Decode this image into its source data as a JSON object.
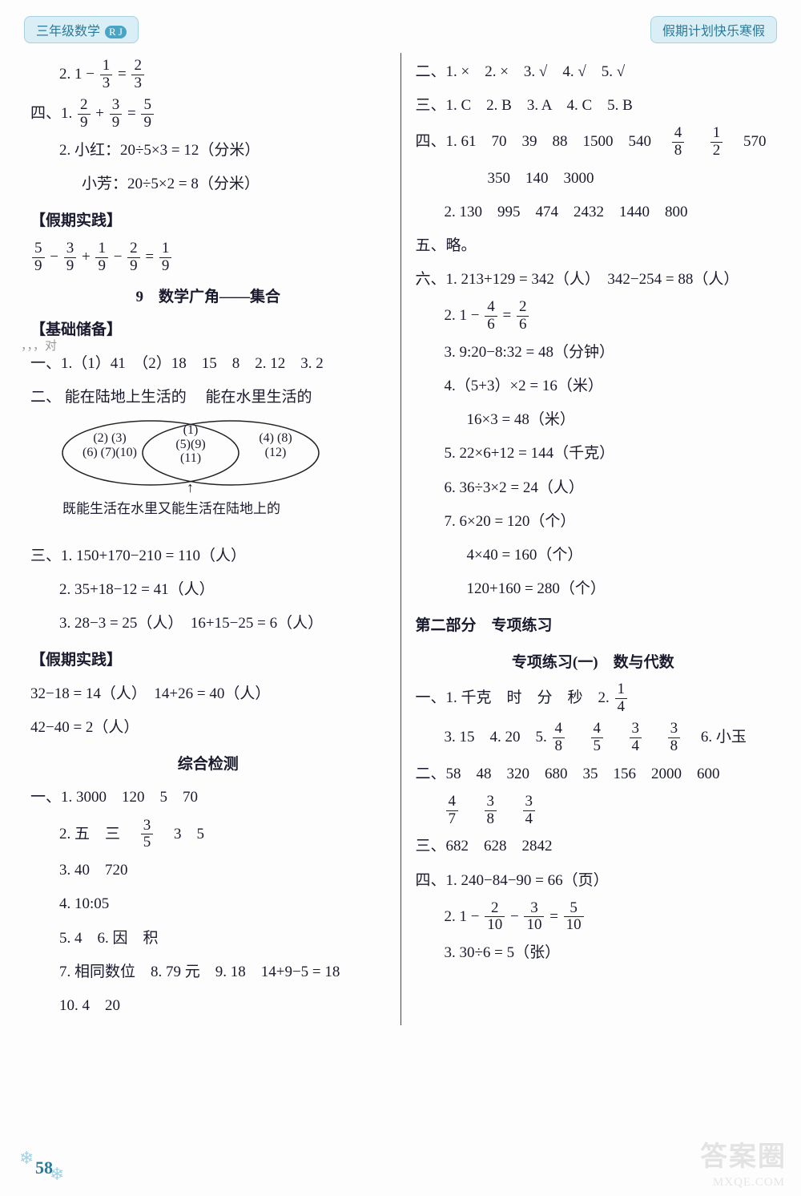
{
  "header": {
    "left_label": "三年级数学",
    "left_badge": "R J",
    "right_label": "假期计划快乐寒假"
  },
  "left_col": {
    "l1_prefix": "2.",
    "l1_lhs": "1 −",
    "l1_f1_num": "1",
    "l1_f1_den": "3",
    "l1_eq": "=",
    "l1_f2_num": "2",
    "l1_f2_den": "3",
    "l2_prefix": "四、1.",
    "l2_f1_num": "2",
    "l2_f1_den": "9",
    "l2_plus": "+",
    "l2_f2_num": "3",
    "l2_f2_den": "9",
    "l2_eq": "=",
    "l2_f3_num": "5",
    "l2_f3_den": "9",
    "l3": "2. 小红：20÷5×3 = 12（分米）",
    "l4": "小芳：20÷5×2 = 8（分米）",
    "sec1": "【假期实践】",
    "l5_f1_num": "5",
    "l5_f1_den": "9",
    "l5_m1": "−",
    "l5_f2_num": "3",
    "l5_f2_den": "9",
    "l5_m2": "+",
    "l5_f3_num": "1",
    "l5_f3_den": "9",
    "l5_m3": "−",
    "l5_f4_num": "2",
    "l5_f4_den": "9",
    "l5_eq": "=",
    "l5_f5_num": "1",
    "l5_f5_den": "9",
    "title9": "9　数学广角——集合",
    "faint_note": "，，，对",
    "sec2": "【基础储备】",
    "l6": "一、1.（1）41　（2）18　15　8　2. 12　3. 2",
    "venn_left_label": "能在陆地上生活的",
    "venn_right_label": "能在水里生活的",
    "venn_left_items": "(2) (3)\n(6) (7)(10)",
    "venn_mid_items": "(1)\n(5)(9)\n(11)",
    "venn_right_items": "(4) (8)\n(12)",
    "venn_caption": "既能生活在水里又能生活在陆地上的",
    "l_two_prefix": "二、",
    "l7": "三、1. 150+170−210 = 110（人）",
    "l8": "2. 35+18−12 = 41（人）",
    "l9": "3. 28−3 = 25（人）　16+15−25 = 6（人）",
    "sec3": "【假期实践】",
    "l10": "32−18 = 14（人）　14+26 = 40（人）",
    "l11": "42−40 = 2（人）",
    "title_comp": "综合检测",
    "l12": "一、1. 3000　120　5　70",
    "l13a": "2. 五　三　",
    "l13_f_num": "3",
    "l13_f_den": "5",
    "l13b": "　3　5",
    "l14": "3. 40　720",
    "l15": "4. 10:05",
    "l16": "5. 4　6. 因　积",
    "l17": "7. 相同数位　8. 79 元　9. 18　14+9−5 = 18",
    "l18": "10. 4　20"
  },
  "right_col": {
    "r1": "二、1. ×　2. ×　3. √　4. √　5. √",
    "r2": "三、1. C　2. B　3. A　4. C　5. B",
    "r3a": "四、1. 61　70　39　88　1500　540　",
    "r3_f1_num": "4",
    "r3_f1_den": "8",
    "r3_mid": "　",
    "r3_f2_num": "1",
    "r3_f2_den": "2",
    "r3b": "　570",
    "r4": "350　140　3000",
    "r5": "2. 130　995　474　2432　1440　800",
    "r6": "五、略。",
    "r7": "六、1. 213+129 = 342（人）　342−254 = 88（人）",
    "r8a": "2. 1 −",
    "r8_f1_num": "4",
    "r8_f1_den": "6",
    "r8_eq": "=",
    "r8_f2_num": "2",
    "r8_f2_den": "6",
    "r9": "3. 9:20−8:32 = 48（分钟）",
    "r10": "4.（5+3）×2 = 16（米）",
    "r11": "16×3 = 48（米）",
    "r12": "5. 22×6+12 = 144（千克）",
    "r13": "6. 36÷3×2 = 24（人）",
    "r14": "7. 6×20 = 120（个）",
    "r15": "4×40 = 160（个）",
    "r16": "120+160 = 280（个）",
    "sec4": "第二部分　专项练习",
    "sec4_sub": "专项练习(一)　数与代数",
    "r17a": "一、1. 千克　时　分　秒　2.",
    "r17_f_num": "1",
    "r17_f_den": "4",
    "r18a": "3. 15　4. 20　5.",
    "r18_f1_num": "4",
    "r18_f1_den": "8",
    "r18_s1": "　",
    "r18_f2_num": "4",
    "r18_f2_den": "5",
    "r18_s2": "　",
    "r18_f3_num": "3",
    "r18_f3_den": "4",
    "r18_s3": "　",
    "r18_f4_num": "3",
    "r18_f4_den": "8",
    "r18b": "　6. 小玉",
    "r19": "二、58　48　320　680　35　156　2000　600",
    "r20_f1_num": "4",
    "r20_f1_den": "7",
    "r20_s1": "　",
    "r20_f2_num": "3",
    "r20_f2_den": "8",
    "r20_s2": "　",
    "r20_f3_num": "3",
    "r20_f3_den": "4",
    "r21": "三、682　628　2842",
    "r22": "四、1. 240−84−90 = 66（页）",
    "r23a": "2. 1 −",
    "r23_f1_num": "2",
    "r23_f1_den": "10",
    "r23_m": "−",
    "r23_f2_num": "3",
    "r23_f2_den": "10",
    "r23_eq": "=",
    "r23_f3_num": "5",
    "r23_f3_den": "10",
    "r24": "3. 30÷6 = 5（张）"
  },
  "footer": {
    "page_num": "58",
    "watermark": "答案圈",
    "watermark_url": "MXQE.COM"
  }
}
